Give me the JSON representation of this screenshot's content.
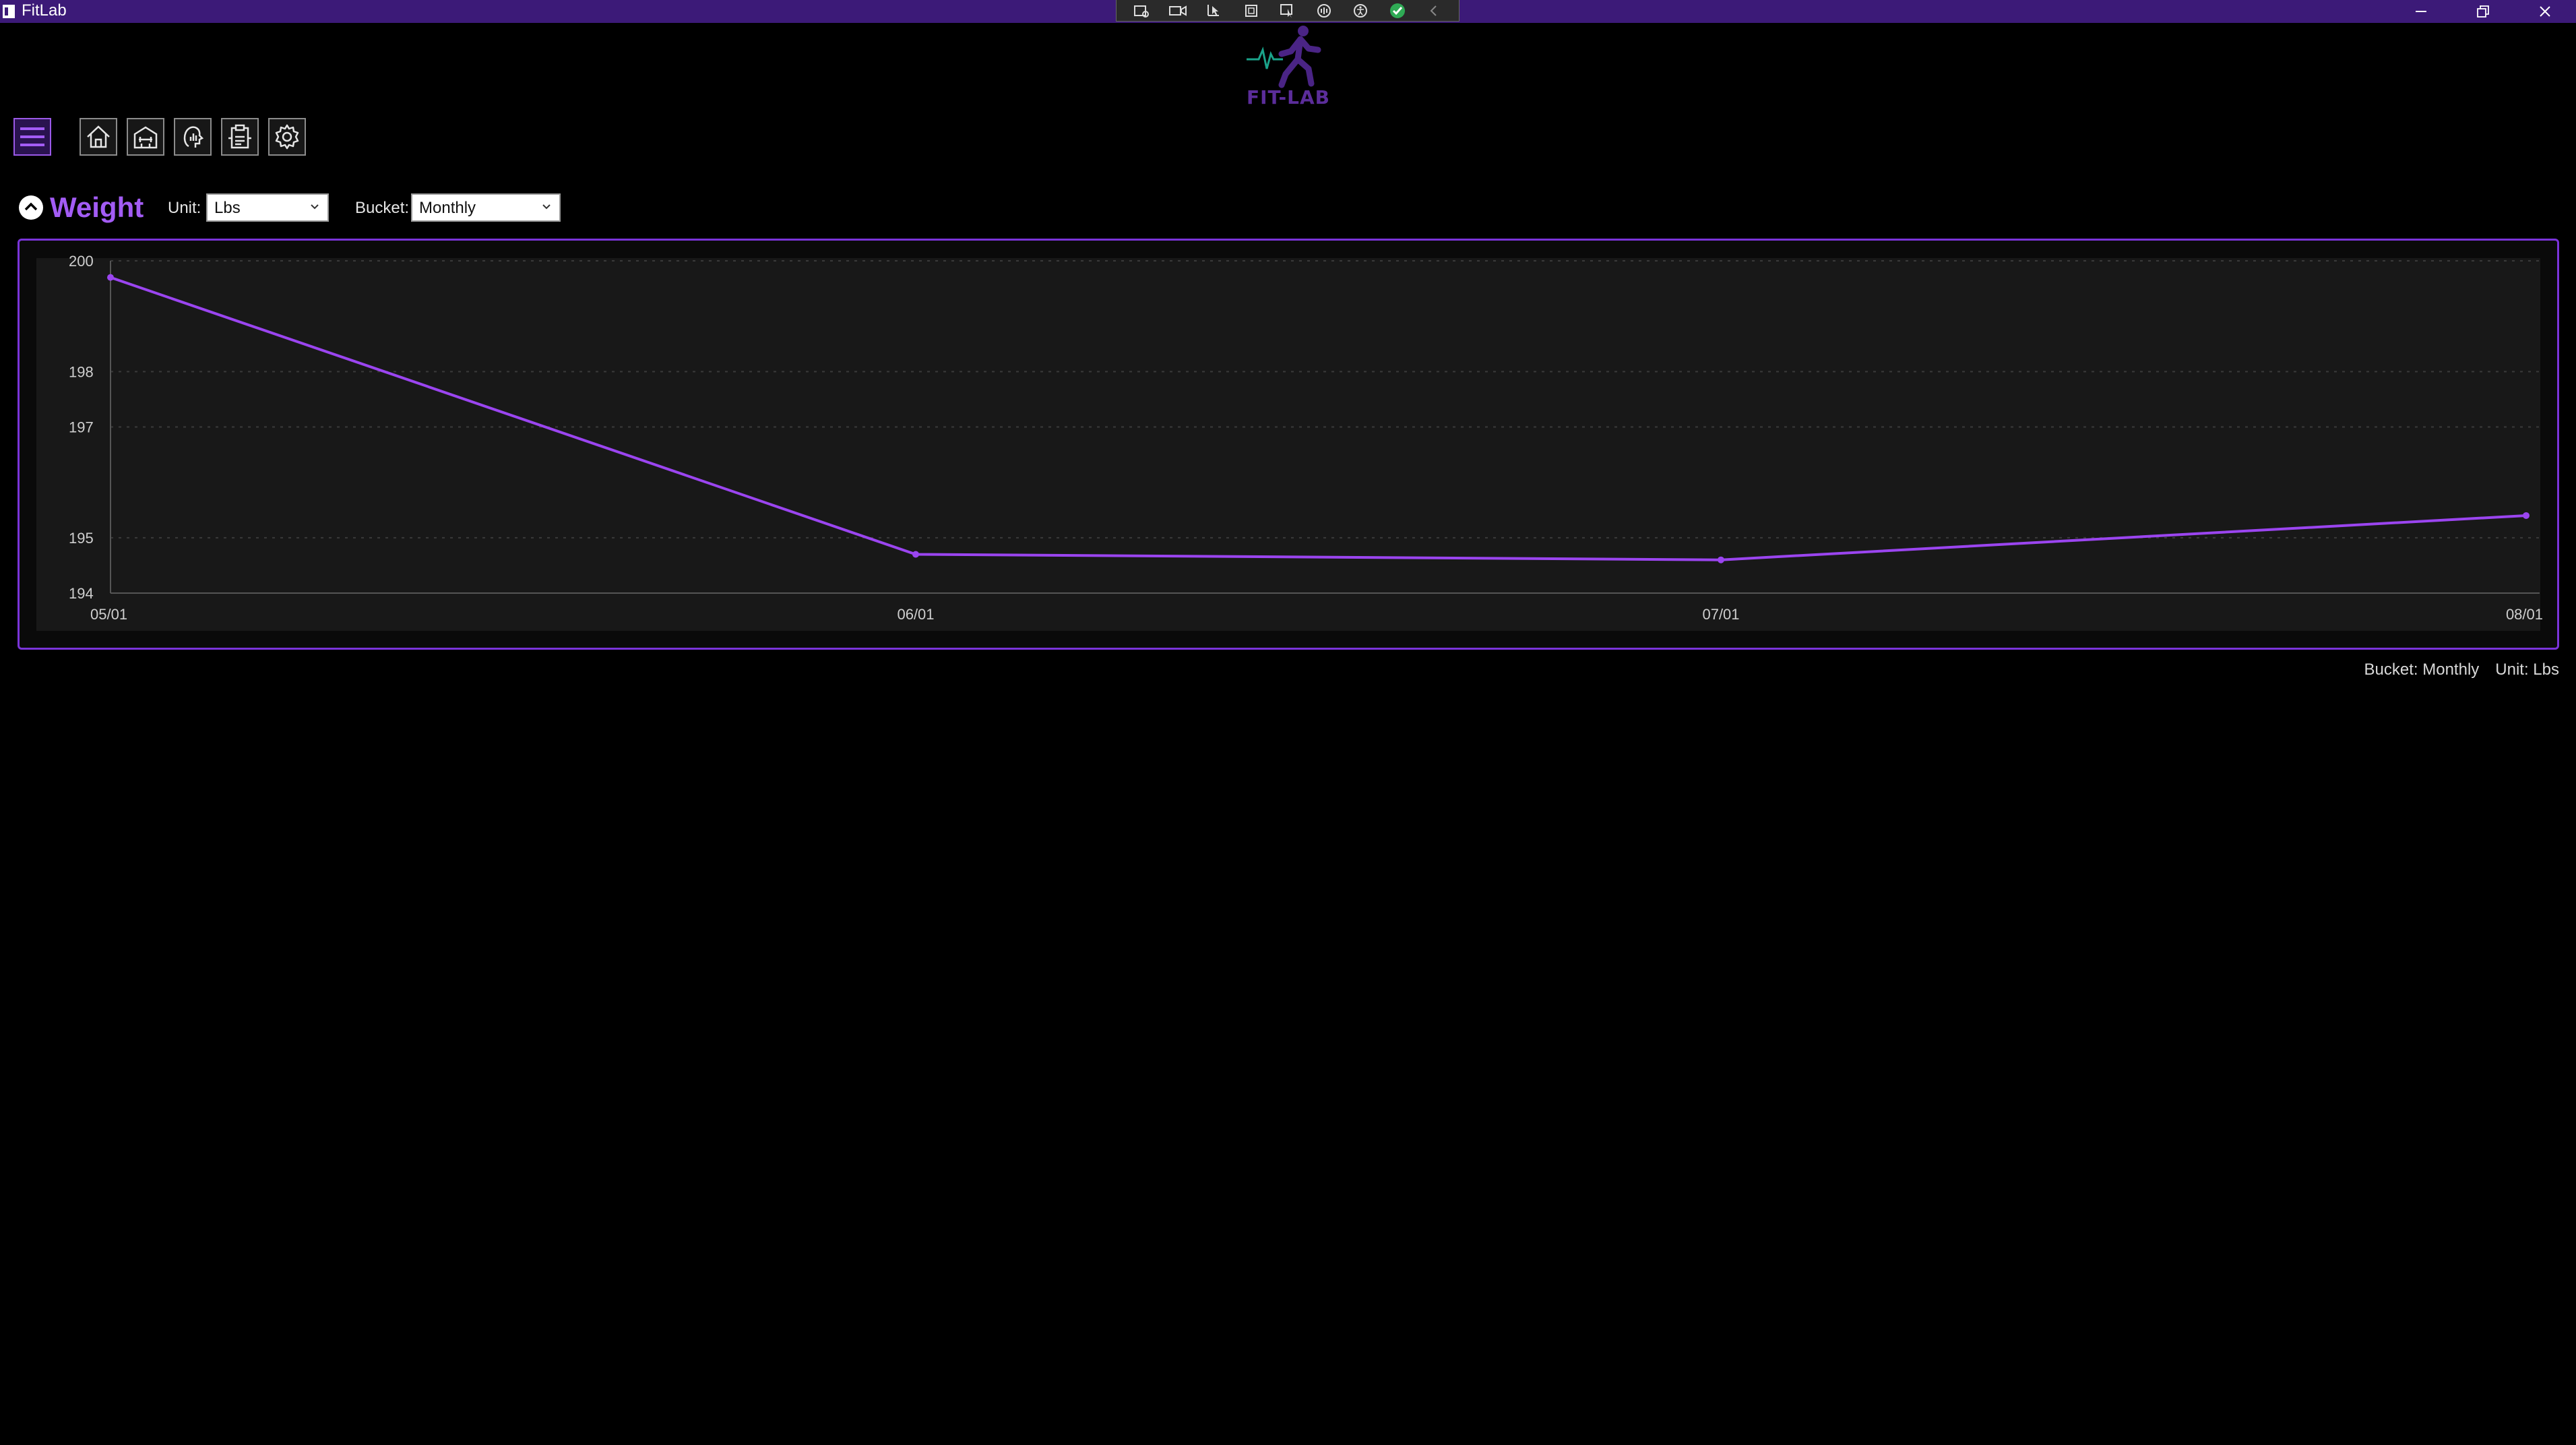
{
  "window": {
    "title": "FitLab"
  },
  "logo": {
    "text": "FIT-LAB"
  },
  "nav": {
    "items": [
      {
        "name": "menu",
        "icon": "hamburger-menu-icon"
      },
      {
        "name": "home",
        "icon": "home-icon"
      },
      {
        "name": "workouts",
        "icon": "gym-icon"
      },
      {
        "name": "progress",
        "icon": "progress-profile-icon"
      },
      {
        "name": "log",
        "icon": "clipboard-icon"
      },
      {
        "name": "settings",
        "icon": "gear-icon"
      }
    ]
  },
  "header": {
    "title": "Weight",
    "unit_label": "Unit:",
    "unit_value": "Lbs",
    "bucket_label": "Bucket:",
    "bucket_value": "Monthly"
  },
  "chart_data": {
    "type": "line",
    "title": "",
    "xlabel": "",
    "ylabel": "",
    "x": [
      "05/01",
      "06/01",
      "07/01",
      "08/01"
    ],
    "series": [
      {
        "values": [
          199.7,
          194.7,
          194.6,
          195.4
        ]
      }
    ],
    "y_ticks": [
      194,
      195,
      197,
      198,
      200
    ],
    "ylim": [
      194,
      200
    ],
    "grid": true,
    "colors": {
      "line": "#9b45f0",
      "grid": "#3a3a3a",
      "plot_bg": "#181818"
    }
  },
  "footer": {
    "bucket": "Bucket: Monthly",
    "unit": "Unit: Lbs"
  },
  "colors": {
    "accent": "#a35cf5",
    "titlebar": "#3c1a78"
  }
}
